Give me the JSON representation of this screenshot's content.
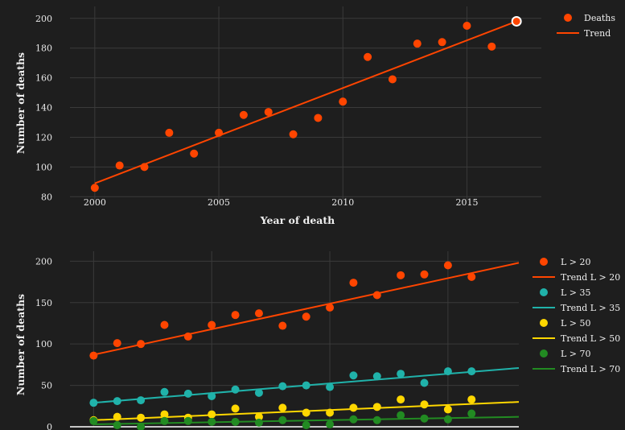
{
  "colors": {
    "background": "#1e1e1e",
    "grid": "#3a3a3a",
    "text": "#f0f0f0"
  },
  "chart_data": [
    {
      "type": "scatter",
      "xlabel": "Year of death",
      "ylabel": "Number of deaths",
      "xlim": [
        1999,
        2018
      ],
      "ylim": [
        78,
        208
      ],
      "x_ticks": [
        2000,
        2005,
        2010,
        2015
      ],
      "y_ticks": [
        80,
        100,
        120,
        140,
        160,
        180,
        200
      ],
      "grid": true,
      "legend_position": "top-right",
      "series": [
        {
          "name": "Deaths",
          "kind": "markers",
          "color": "#ff4500",
          "x": [
            2000,
            2001,
            2002,
            2003,
            2004,
            2005,
            2006,
            2007,
            2008,
            2009,
            2010,
            2011,
            2012,
            2013,
            2014,
            2015,
            2016,
            2017
          ],
          "y": [
            86,
            101,
            100,
            123,
            109,
            123,
            135,
            137,
            122,
            133,
            144,
            174,
            159,
            183,
            184,
            195,
            181,
            198
          ],
          "highlight_index": 17
        },
        {
          "name": "Trend",
          "kind": "line",
          "color": "#ff4500",
          "x": [
            2000,
            2017
          ],
          "y": [
            89,
            198
          ]
        }
      ]
    },
    {
      "type": "scatter",
      "ylabel": "Number of deaths",
      "xlim": [
        1999,
        2018
      ],
      "ylim": [
        0,
        212
      ],
      "y_ticks": [
        0,
        50,
        100,
        150,
        200
      ],
      "grid": true,
      "legend_position": "top-right",
      "x": [
        2000,
        2001,
        2002,
        2003,
        2004,
        2005,
        2006,
        2007,
        2008,
        2009,
        2010,
        2011,
        2012,
        2013,
        2014,
        2015,
        2016
      ],
      "series": [
        {
          "name": "L > 20",
          "kind": "markers",
          "color": "#ff4500",
          "y": [
            86,
            101,
            100,
            123,
            109,
            123,
            135,
            137,
            122,
            133,
            144,
            174,
            159,
            183,
            184,
            195,
            181
          ]
        },
        {
          "name": "Trend L > 20",
          "kind": "line",
          "color": "#ff4500",
          "x": [
            2000,
            2018
          ],
          "y": [
            87,
            198
          ]
        },
        {
          "name": "L > 35",
          "kind": "markers",
          "color": "#20b2aa",
          "y": [
            29,
            31,
            32,
            42,
            40,
            37,
            45,
            41,
            49,
            50,
            48,
            62,
            61,
            64,
            53,
            67,
            67
          ]
        },
        {
          "name": "Trend L > 35",
          "kind": "line",
          "color": "#20b2aa",
          "x": [
            2000,
            2018
          ],
          "y": [
            29,
            71
          ]
        },
        {
          "name": "L > 50",
          "kind": "markers",
          "color": "#ffd700",
          "y": [
            8,
            12,
            11,
            15,
            11,
            15,
            22,
            12,
            23,
            17,
            17,
            23,
            24,
            33,
            27,
            21,
            33
          ]
        },
        {
          "name": "Trend L > 50",
          "kind": "line",
          "color": "#ffd700",
          "x": [
            2000,
            2018
          ],
          "y": [
            8,
            30
          ]
        },
        {
          "name": "L > 70",
          "kind": "markers",
          "color": "#228b22",
          "y": [
            7,
            2,
            0,
            7,
            7,
            6,
            6,
            5,
            8,
            2,
            3,
            9,
            8,
            14,
            10,
            9,
            16
          ]
        },
        {
          "name": "Trend L > 70",
          "kind": "line",
          "color": "#228b22",
          "x": [
            2000,
            2018
          ],
          "y": [
            3,
            12
          ]
        }
      ]
    }
  ]
}
